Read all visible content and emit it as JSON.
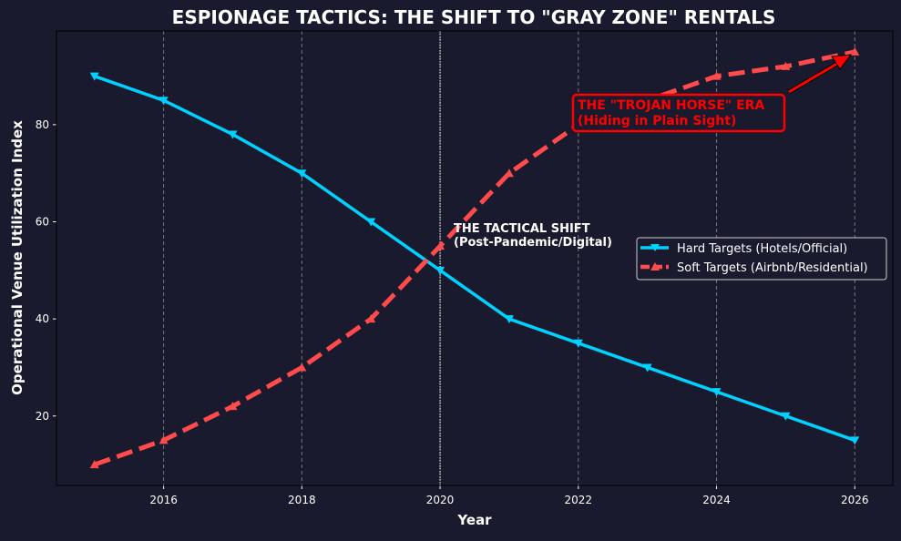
{
  "chart_data": {
    "type": "line",
    "title": "ESPIONAGE TACTICS: THE SHIFT TO \"GRAY ZONE\" RENTALS",
    "xlabel": "Year",
    "ylabel": "Operational Venue Utilization Index",
    "x": [
      2015,
      2016,
      2017,
      2018,
      2019,
      2020,
      2021,
      2022,
      2023,
      2024,
      2025,
      2026
    ],
    "xlim": [
      2014.45,
      2026.55
    ],
    "ylim": [
      5.7,
      99.3
    ],
    "xticks": [
      2016,
      2018,
      2020,
      2022,
      2024,
      2026
    ],
    "yticks": [
      20,
      40,
      60,
      80
    ],
    "grid": "vertical dashed",
    "legend_position": "center-right",
    "series": [
      {
        "name": "Hard Targets (Hotels/Official)",
        "color": "#00d2ff",
        "marker": "triangle-down",
        "style": "solid",
        "values": [
          90,
          85,
          78,
          70,
          60,
          50,
          40,
          35,
          30,
          25,
          20,
          15
        ]
      },
      {
        "name": "Soft Targets (Airbnb/Residential)",
        "color": "#ff4b4b",
        "marker": "triangle-up",
        "style": "dashed",
        "values": [
          10,
          15,
          22,
          30,
          40,
          55,
          70,
          80,
          85,
          90,
          92,
          95
        ]
      }
    ],
    "annotations": [
      {
        "text_line1": "THE TACTICAL SHIFT",
        "text_line2": "(Post-Pandemic/Digital)",
        "x": 2020,
        "color": "#ffffff"
      },
      {
        "text_line1": "THE \"TROJAN HORSE\" ERA",
        "text_line2": "(Hiding in Plain Sight)",
        "arrow_to": [
          2026,
          95
        ],
        "color": "#ff0000"
      }
    ]
  }
}
